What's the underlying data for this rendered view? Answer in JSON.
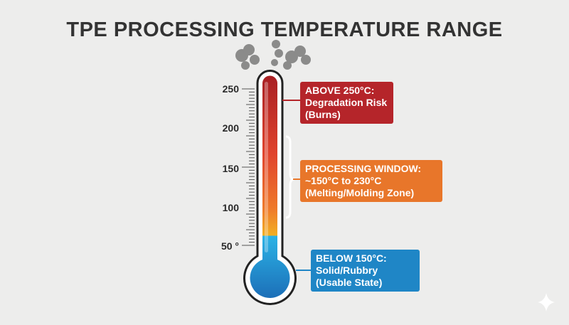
{
  "title": "TPE PROCESSING TEMPERATURE RANGE",
  "scale": {
    "ticks": [
      "250",
      "200",
      "150",
      "100",
      "50 °"
    ]
  },
  "zones": {
    "high": {
      "line1": "ABOVE 250°C:",
      "line2": "Degradation Risk",
      "line3": "(Burns)",
      "color": "#b5252a"
    },
    "window": {
      "line1": "PROCESSING WINDOW:",
      "line2": "~150°C to 230°C",
      "line3": "(Melting/Molding Zone)",
      "color": "#e8762a"
    },
    "low": {
      "line1": "BELOW 150°C:",
      "line2": "Solid/Rubbry",
      "line3": "(Usable State)",
      "color": "#1f86c6"
    }
  }
}
